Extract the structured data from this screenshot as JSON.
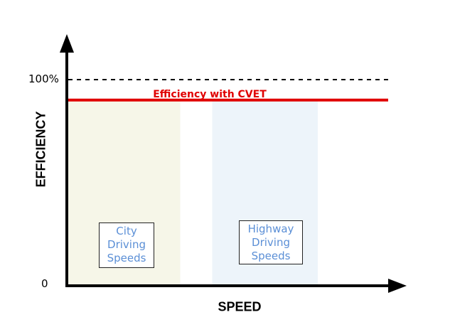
{
  "chart_data": {
    "type": "line",
    "xlabel": "SPEED",
    "ylabel": "EFFICIENCY",
    "y_ticks": [
      "100%",
      "0"
    ],
    "ylim": [
      0,
      100
    ],
    "xlim": [
      0,
      100
    ],
    "reference_line": {
      "y": 100,
      "style": "dashed"
    },
    "series": [
      {
        "name": "Efficiency with CVET",
        "color": "#e00000",
        "x": [
          0,
          100
        ],
        "y": [
          90,
          90
        ]
      }
    ],
    "bands": [
      {
        "label": [
          "City",
          "Driving",
          "Speeds"
        ],
        "x_range": [
          0,
          35
        ],
        "color": "#f6f6e8"
      },
      {
        "label": [
          "Highway",
          "Driving",
          "Speeds"
        ],
        "x_range": [
          45,
          78
        ],
        "color": "#edf4fa"
      }
    ]
  }
}
